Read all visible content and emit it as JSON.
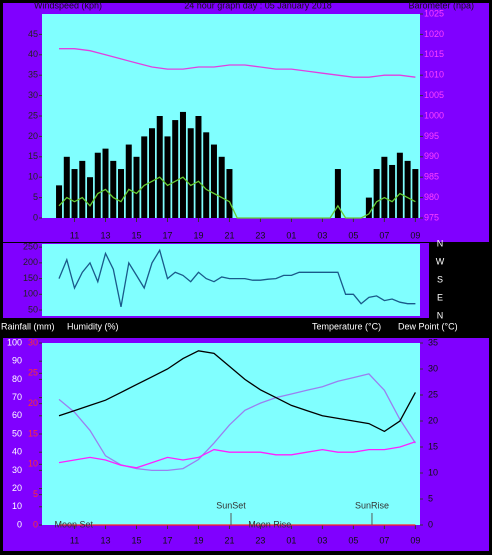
{
  "chart_data": [
    {
      "type": "combo",
      "title": "24 hour graph day : 05 January 2018",
      "ylabel": "Windspeed (kph)",
      "y2label": "Barometer (hpa)",
      "xlim": [
        8.9,
        33.3
      ],
      "xticks": [
        11,
        13,
        15,
        17,
        19,
        21,
        23,
        {
          "value": 25,
          "label": "01"
        },
        {
          "value": 27,
          "label": "03"
        },
        {
          "value": 29,
          "label": "05"
        },
        {
          "value": 31,
          "label": "07"
        },
        {
          "value": 33,
          "label": "09"
        }
      ],
      "ylim": [
        0,
        50
      ],
      "yticks": [
        0,
        5,
        10,
        15,
        20,
        25,
        30,
        35,
        40,
        45
      ],
      "y2lim": [
        975,
        1025
      ],
      "y2ticks": [
        975,
        980,
        985,
        990,
        995,
        1000,
        1005,
        1010,
        1015,
        1020,
        1025
      ],
      "x": [
        10,
        10.5,
        11,
        11.5,
        12,
        12.5,
        13,
        13.5,
        14,
        14.5,
        15,
        15.5,
        16,
        16.5,
        17,
        17.5,
        18,
        18.5,
        19,
        19.5,
        20,
        20.5,
        21,
        21.5,
        22,
        22.5,
        23,
        23.5,
        24,
        24.5,
        25,
        25.5,
        26,
        26.5,
        27,
        27.5,
        28,
        28.5,
        29,
        29.5,
        30,
        30.5,
        31,
        31.5,
        32,
        32.5,
        33
      ],
      "series": [
        {
          "color": "#000000",
          "chart": "bar",
          "values": [
            8,
            15,
            12,
            14,
            10,
            16,
            17,
            14,
            12,
            18,
            15,
            20,
            22,
            25,
            20,
            24,
            26,
            22,
            25,
            21,
            18,
            15,
            12,
            0,
            0,
            0,
            0,
            0,
            0,
            0,
            0,
            0,
            0,
            0,
            0,
            0,
            12,
            0,
            0,
            0,
            5,
            12,
            15,
            13,
            16,
            14,
            12
          ]
        },
        {
          "color": "#66cc33",
          "chart": "line",
          "values": [
            3,
            5,
            4,
            5,
            3,
            6,
            7,
            5,
            4,
            7,
            6,
            8,
            9,
            10,
            8,
            9,
            10,
            8,
            9,
            7,
            6,
            5,
            4,
            0,
            0,
            0,
            0,
            0,
            0,
            0,
            0,
            0,
            0,
            0,
            0,
            0,
            3,
            0,
            0,
            0,
            1,
            4,
            5,
            4,
            6,
            5,
            4
          ]
        },
        {
          "color": "#e040e0",
          "chart": "line",
          "axis": "y2",
          "x": [
            10,
            11,
            12,
            13,
            14,
            15,
            16,
            17,
            18,
            19,
            20,
            21,
            22,
            23,
            24,
            25,
            26,
            27,
            28,
            29,
            30,
            31,
            32,
            33
          ],
          "values": [
            1016.5,
            1016.5,
            1016,
            1015,
            1014,
            1013,
            1012,
            1011.5,
            1011.5,
            1012,
            1012,
            1012.5,
            1012.5,
            1012,
            1011.5,
            1011.5,
            1011,
            1010.5,
            1010,
            1009.5,
            1009.5,
            1010,
            1010,
            1009.5
          ]
        }
      ]
    },
    {
      "type": "line",
      "xlim": [
        8.9,
        33.3
      ],
      "ylim": [
        31,
        260
      ],
      "yticks": [
        50,
        100,
        150,
        200,
        250
      ],
      "compass": [
        "N",
        "W",
        "S",
        "E",
        "N"
      ],
      "x": [
        10,
        10.5,
        11,
        11.5,
        12,
        12.5,
        13,
        13.5,
        14,
        14.5,
        15,
        15.5,
        16,
        16.5,
        17,
        17.5,
        18,
        18.5,
        19,
        19.5,
        20,
        20.5,
        21,
        21.5,
        22,
        22.5,
        23,
        23.5,
        24,
        24.5,
        25,
        25.5,
        26,
        26.5,
        27,
        27.5,
        28,
        28.5,
        29,
        29.5,
        30,
        30.5,
        31,
        31.5,
        32,
        32.5,
        33
      ],
      "series": [
        {
          "color": "#1a5a8a",
          "values": [
            150,
            210,
            120,
            170,
            200,
            140,
            230,
            180,
            60,
            200,
            160,
            120,
            200,
            240,
            150,
            170,
            160,
            140,
            170,
            150,
            140,
            155,
            150,
            150,
            150,
            145,
            145,
            148,
            150,
            160,
            160,
            170,
            170,
            170,
            170,
            170,
            170,
            100,
            100,
            70,
            90,
            95,
            80,
            85,
            75,
            70,
            70
          ]
        }
      ]
    },
    {
      "type": "line",
      "ylabel": "Rainfall (mm)",
      "y3label": "Humidity (%)",
      "y2label": "Temperature (°C)",
      "y4label": "Dew Point (°C)",
      "xlim": [
        8.9,
        33.3
      ],
      "xticks": [
        11,
        13,
        15,
        17,
        19,
        21,
        23,
        {
          "value": 25,
          "label": "01"
        },
        {
          "value": 27,
          "label": "03"
        },
        {
          "value": 29,
          "label": "05"
        },
        {
          "value": 31,
          "label": "07"
        },
        {
          "value": 33,
          "label": "09"
        }
      ],
      "ylim": [
        0,
        30
      ],
      "yticks": [
        0,
        5,
        10,
        15,
        20,
        25,
        30
      ],
      "y3lim": [
        0,
        100
      ],
      "y3ticks": [
        0,
        10,
        20,
        30,
        40,
        50,
        60,
        70,
        80,
        90,
        100
      ],
      "y2lim": [
        0,
        35
      ],
      "y2ticks": [
        0,
        5,
        10,
        15,
        20,
        25,
        30,
        35
      ],
      "events": [
        {
          "label": "Moon Set",
          "x": 10.95
        },
        {
          "label": "SunSet",
          "x": 21.1,
          "line": true
        },
        {
          "label": "Moon Rise",
          "x": 23.6
        },
        {
          "label": "SunRise",
          "x": 30.2,
          "line": true
        }
      ],
      "x": [
        10,
        11,
        12,
        13,
        14,
        15,
        16,
        17,
        18,
        19,
        20,
        21,
        22,
        23,
        24,
        25,
        26,
        27,
        28,
        29,
        30,
        31,
        32,
        33
      ],
      "series": [
        {
          "color": "#ff2020",
          "values": [
            0,
            0,
            0,
            0,
            0,
            0,
            0,
            0,
            0,
            0,
            0,
            0,
            0,
            0,
            0,
            0,
            0,
            0,
            0,
            0,
            0,
            0,
            0,
            0
          ]
        },
        {
          "color": "#9a80f0",
          "axis": "y3",
          "values": [
            69,
            62,
            52,
            38,
            33,
            31,
            30,
            30,
            31,
            36,
            45,
            55,
            63,
            67,
            70,
            72,
            74,
            76,
            79,
            81,
            83,
            74,
            58,
            45
          ]
        },
        {
          "color": "#000000",
          "axis": "y2",
          "values": [
            21,
            22,
            23,
            24,
            25.5,
            27,
            28.5,
            30,
            32,
            33.5,
            33,
            30.5,
            28,
            26,
            24.5,
            23,
            22,
            21,
            20.5,
            20,
            19.5,
            18,
            20,
            25.5
          ]
        },
        {
          "color": "#ff20ff",
          "axis": "y2",
          "values": [
            12,
            12.5,
            13,
            12.5,
            11.5,
            11,
            12,
            13,
            12.5,
            13,
            14.5,
            14,
            14,
            14,
            13.5,
            13.5,
            14,
            14.5,
            14,
            14,
            14.5,
            14.5,
            15,
            16
          ]
        }
      ]
    }
  ]
}
